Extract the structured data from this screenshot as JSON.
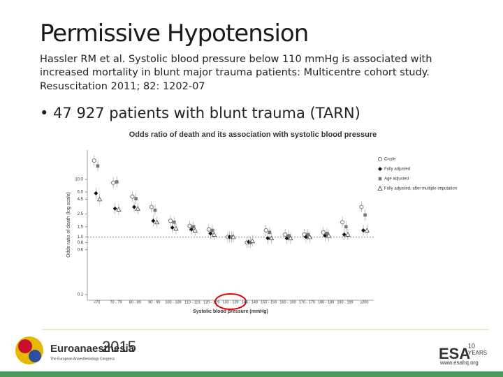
{
  "slide": {
    "title": "Permissive Hypotension",
    "citation": [
      "Hassler RM et al. Systolic blood pressure below 110 mmHg is associated with",
      "increased mortality in blunt major trauma patients: Multicentre cohort study.",
      "Resuscitation 2011; 82: 1202-07"
    ],
    "bullet": "• 47 927 patients with blunt trauma (TARN)",
    "footer": {
      "congress": "Euroanaesthesia",
      "year": "2015",
      "congress_sub": "The European Anaesthesiology Congress",
      "esa": "ESA",
      "anniversary_number": "10",
      "anniversary_word": "YEARS",
      "url": "www.esahq.org"
    }
  },
  "chart_data": {
    "type": "scatter",
    "title": "Odds ratio of death and its association with systolic blood pressure",
    "y_label": "Odds ratio of death (log scale)",
    "x_label": "Systolic blood pressure (mmHg)",
    "categories": [
      "<70",
      "70 - 79",
      "80 - 89",
      "90 - 99",
      "100 - 109",
      "110 - 119",
      "120 - 129",
      "130 - 139",
      "140 - 149",
      "150 - 159",
      "160 - 169",
      "170 - 179",
      "180 - 189",
      "190 - 199",
      "≥200"
    ],
    "log_scale": true,
    "ylim": [
      0.08,
      32
    ],
    "yticks": [
      {
        "value": 0.1,
        "label": "0.1"
      },
      {
        "value": 0.6,
        "label": "0.6"
      },
      {
        "value": 0.8,
        "label": "0.8"
      },
      {
        "value": 1,
        "label": "1.0"
      },
      {
        "value": 1.5,
        "label": "1.5"
      },
      {
        "value": 2.5,
        "label": "2.5"
      },
      {
        "value": 4.5,
        "label": "4.5"
      },
      {
        "value": 6,
        "label": "6.0"
      },
      {
        "value": 10,
        "label": "10.0"
      }
    ],
    "reference_line": 1,
    "series": [
      {
        "name": "Crude",
        "marker": "circle",
        "color": "#666666",
        "values": [
          21,
          8.7,
          5.0,
          3.3,
          1.9,
          1.55,
          1.35,
          1.0,
          0.8,
          1.3,
          1.1,
          1.1,
          1.2,
          1.8,
          3.3
        ]
      },
      {
        "name": "Fully adjusted",
        "marker": "diamond",
        "color": "#111111",
        "values": [
          5.7,
          3.1,
          3.3,
          1.9,
          1.45,
          1.35,
          1.15,
          1.0,
          0.82,
          0.95,
          0.95,
          1.0,
          1.05,
          1.1,
          1.3
        ]
      },
      {
        "name": "Age adjusted",
        "marker": "square",
        "color": "#777777",
        "values": [
          17,
          9.0,
          4.6,
          2.9,
          1.8,
          1.5,
          1.3,
          1.0,
          0.8,
          1.2,
          1.05,
          1.1,
          1.15,
          1.5,
          2.4
        ]
      },
      {
        "name": "Fully adjusted, after multiple imputation",
        "marker": "triangle",
        "color": "#444444",
        "values": [
          4.5,
          3.0,
          3.1,
          1.8,
          1.4,
          1.3,
          1.1,
          1.0,
          0.85,
          0.95,
          0.95,
          1.0,
          1.05,
          1.1,
          1.3
        ]
      }
    ]
  }
}
